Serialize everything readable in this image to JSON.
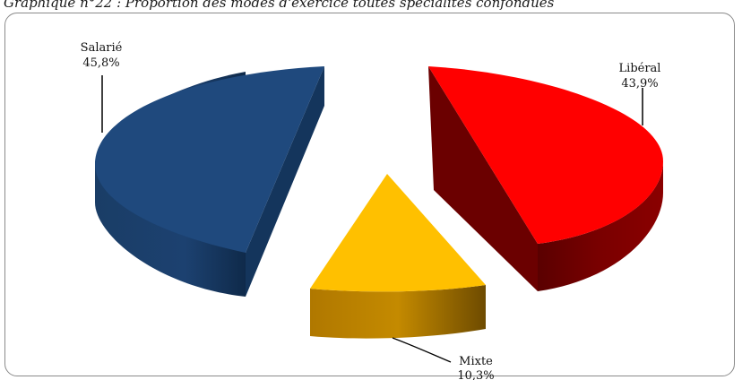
{
  "chart_data": {
    "type": "pie",
    "style": "3d-exploded",
    "title": "Graphique n°22 : Proportion des modes d'exercice toutes spécialités confondues",
    "slices": [
      {
        "name": "Salarié",
        "value": 45.8,
        "value_label": "45,8%",
        "color": "#1f497d"
      },
      {
        "name": "Libéral",
        "value": 43.9,
        "value_label": "43,9%",
        "color": "#ff0000"
      },
      {
        "name": "Mixte",
        "value": 10.3,
        "value_label": "10,3%",
        "color": "#ffc000"
      }
    ]
  }
}
